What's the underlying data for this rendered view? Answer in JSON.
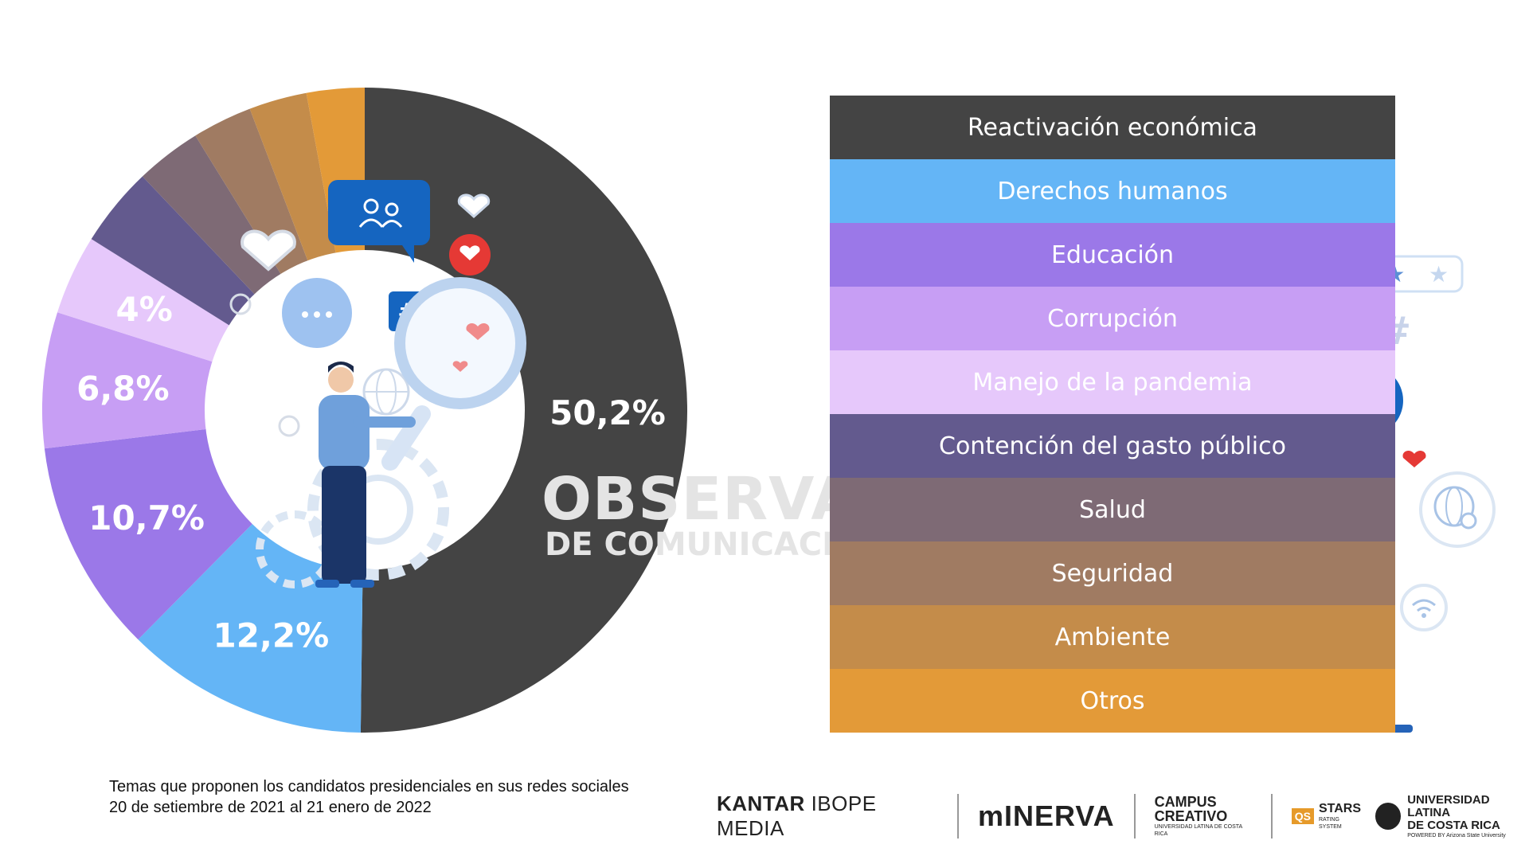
{
  "chart_data": {
    "type": "pie",
    "categories": [
      "Reactivación económica",
      "Derechos humanos",
      "Educación",
      "Corrupción",
      "Manejo de la pandemia",
      "Contención del gasto público",
      "Salud",
      "Seguridad",
      "Ambiente",
      "Otros"
    ],
    "values": [
      50.2,
      12.2,
      10.7,
      6.8,
      4.0,
      4.0,
      3.3,
      3.0,
      2.9,
      2.9
    ],
    "labels": [
      "50,2%",
      "12,2%",
      "10,7%",
      "6,8%",
      "4%",
      "",
      "",
      "",
      "",
      ""
    ],
    "colors": [
      "#444444",
      "#64b5f6",
      "#9b78e8",
      "#c79ef4",
      "#e6c8fb",
      "#635a8e",
      "#7e6a75",
      "#a07b62",
      "#c48c4a",
      "#e39a38"
    ],
    "label_colors": [
      "#ffffff",
      "#ffffff",
      "#ffffff",
      "#ffffff",
      "#ffffff",
      "#ffffff",
      "#ffffff",
      "#ffffff",
      "#ffffff",
      "#ffffff"
    ],
    "legend_text_colors": [
      "#ffffff",
      "#ffffff",
      "#ffffff",
      "#ffffff",
      "#ffffff",
      "#ffffff",
      "#ffffff",
      "#ffffff",
      "#ffffff",
      "#ffffff"
    ]
  },
  "watermark": {
    "line1": "OBSERVATORIO",
    "line2": "DE COMUNICACIÓN DIGITAL"
  },
  "caption": {
    "line1": "Temas que proponen los candidatos presidenciales en sus redes sociales",
    "line2": "20 de setiembre de 2021 al 21 enero de 2022"
  },
  "logos": {
    "kantar_bold": "KANTAR",
    "kantar_light": "IBOPE MEDIA",
    "minerva": "mINERVA",
    "campus_line1": "CAMPUS",
    "campus_line2": "CREATIVO",
    "campus_sub": "UNIVERSIDAD LATINA DE COSTA RICA",
    "qs_badge": "QS",
    "qs_stars": "STARS",
    "qs_sub": "RATING SYSTEM",
    "ulat_line1": "UNIVERSIDAD LATINA",
    "ulat_line2": "DE COSTA RICA",
    "ulat_sub": "POWERED BY Arizona State University"
  },
  "icons": [
    "people-chat-icon",
    "heart-icon",
    "heart-bubble-icon",
    "dots-chat-icon",
    "hashtag-icon",
    "magnifier-icon",
    "globe-icon",
    "gear-icon",
    "star-rating-icon",
    "megaphone-icon",
    "wifi-icon"
  ]
}
